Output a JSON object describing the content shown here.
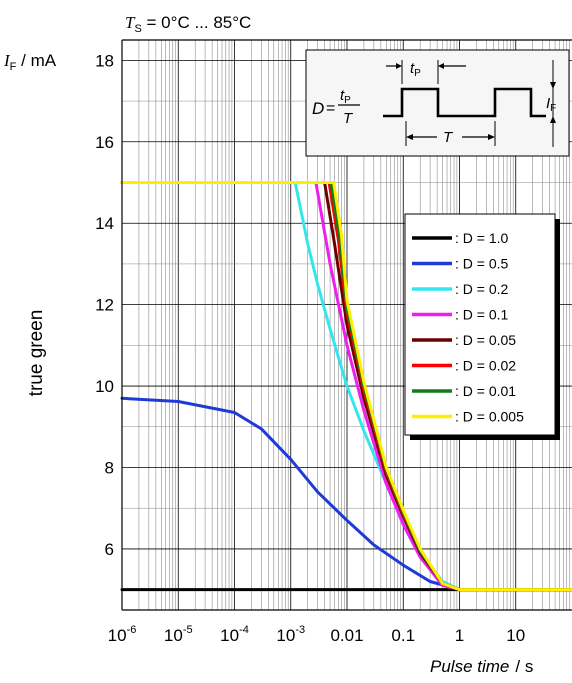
{
  "header": {
    "temp_symbol": "T",
    "temp_sub": "S",
    "temp_range": " = 0°C ... 85°C",
    "y_symbol": "I",
    "y_sub": "F",
    "y_unit": " / mA",
    "side_label": "true green",
    "x_label": "Pulse time",
    "x_unit": "/ s"
  },
  "inset": {
    "d_symbol": "D",
    "equals": "=",
    "tp_num": "t",
    "tp_sub": "P",
    "t_den": "T",
    "tp_top_sym": "t",
    "tp_top_sub": "P",
    "t_period": "T",
    "if_sym": "I",
    "if_sub": "F"
  },
  "chart_data": {
    "type": "line",
    "xscale": "log",
    "xlim": [
      1e-06,
      100
    ],
    "ylim": [
      4.5,
      18.5
    ],
    "grid": true,
    "legend_position": "inside right",
    "x_tick_labels": [
      {
        "base": "10",
        "exp": "-6",
        "v": 1e-06
      },
      {
        "base": "10",
        "exp": "-5",
        "v": 1e-05
      },
      {
        "base": "10",
        "exp": "-4",
        "v": 0.0001
      },
      {
        "base": "10",
        "exp": "-3",
        "v": 0.001
      },
      {
        "base": "0.01",
        "exp": "",
        "v": 0.01
      },
      {
        "base": "0.1",
        "exp": "",
        "v": 0.1
      },
      {
        "base": "1",
        "exp": "",
        "v": 1
      },
      {
        "base": "10",
        "exp": "",
        "v": 10
      }
    ],
    "y_ticks": [
      6,
      8,
      10,
      12,
      14,
      16,
      18
    ],
    "series": [
      {
        "name": ": D = 1.0",
        "color": "#000000",
        "x": [
          1e-06,
          100
        ],
        "y": [
          5,
          5
        ]
      },
      {
        "name": ": D = 0.5",
        "color": "#1f3ad6",
        "x": [
          1e-06,
          1e-05,
          0.0001,
          0.0003,
          0.001,
          0.003,
          0.01,
          0.03,
          0.1,
          0.3,
          1,
          100
        ],
        "y": [
          9.7,
          9.62,
          9.35,
          8.95,
          8.2,
          7.4,
          6.7,
          6.1,
          5.6,
          5.2,
          5.0,
          5.0
        ]
      },
      {
        "name": ": D = 0.2",
        "color": "#33e6ee",
        "x": [
          1e-06,
          0.0012,
          0.002,
          0.003,
          0.005,
          0.01,
          0.02,
          0.05,
          0.1,
          0.2,
          0.5,
          1,
          100
        ],
        "y": [
          15,
          15,
          13.5,
          12.5,
          11.4,
          10.0,
          8.9,
          7.6,
          6.7,
          5.9,
          5.2,
          5.0,
          5.0
        ]
      },
      {
        "name": ": D = 0.1",
        "color": "#ee1fee",
        "x": [
          1e-06,
          0.0028,
          0.005,
          0.01,
          0.02,
          0.05,
          0.1,
          0.2,
          0.5,
          1,
          100
        ],
        "y": [
          15,
          15,
          13.0,
          11.0,
          9.4,
          7.6,
          6.6,
          5.8,
          5.1,
          5.0,
          5.0
        ]
      },
      {
        "name": ": D = 0.05",
        "color": "#6b0000",
        "x": [
          1e-06,
          0.004,
          0.006,
          0.01,
          0.02,
          0.05,
          0.1,
          0.2,
          0.5,
          1,
          100
        ],
        "y": [
          15,
          15,
          13.5,
          11.5,
          9.7,
          7.8,
          6.8,
          5.9,
          5.15,
          5.0,
          5.0
        ]
      },
      {
        "name": ": D = 0.02",
        "color": "#ff0000",
        "x": [
          1e-06,
          0.0048,
          0.007,
          0.01,
          0.02,
          0.05,
          0.1,
          0.2,
          0.5,
          1,
          100
        ],
        "y": [
          15,
          15,
          13.6,
          11.8,
          9.9,
          7.9,
          6.85,
          5.95,
          5.15,
          5.0,
          5.0
        ]
      },
      {
        "name": ": D = 0.01",
        "color": "#157a1a",
        "x": [
          1e-06,
          0.0052,
          0.0075,
          0.01,
          0.02,
          0.05,
          0.1,
          0.2,
          0.5,
          1,
          100
        ],
        "y": [
          15,
          15,
          13.6,
          11.9,
          10.0,
          7.95,
          6.9,
          5.95,
          5.15,
          5.0,
          5.0
        ]
      },
      {
        "name": ": D = 0.005",
        "color": "#ffee00",
        "x": [
          1e-06,
          0.0058,
          0.008,
          0.01,
          0.02,
          0.05,
          0.1,
          0.2,
          0.5,
          1,
          100
        ],
        "y": [
          15,
          15,
          13.7,
          12.1,
          10.1,
          8.0,
          6.95,
          6.0,
          5.15,
          5.0,
          5.0
        ]
      }
    ]
  }
}
